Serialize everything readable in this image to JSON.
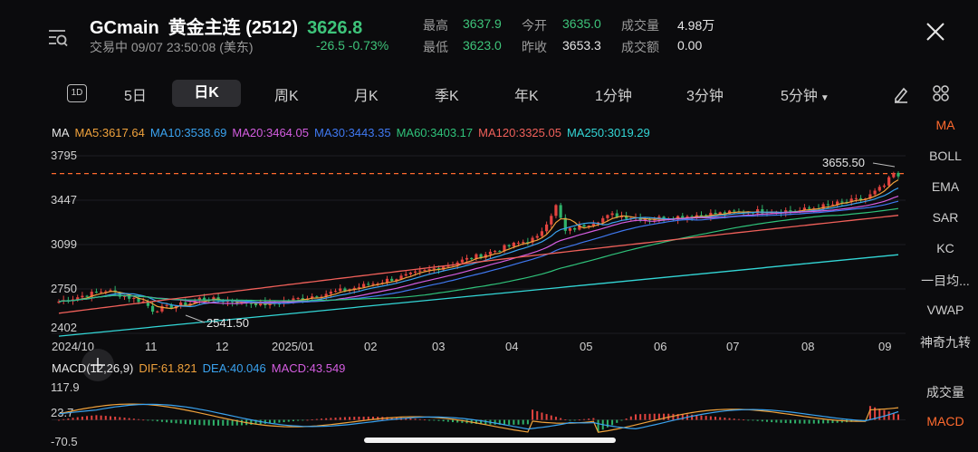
{
  "header": {
    "symbol": "GCmain",
    "name": "黄金主连 (2512)",
    "price": "3626.8",
    "status": "交易中 09/07 23:50:08 (美东)",
    "change": "-26.5 -0.73%",
    "quotes": [
      {
        "label": "最高",
        "value": "3637.9",
        "color": "green"
      },
      {
        "label": "今开",
        "value": "3635.0",
        "color": "green"
      },
      {
        "label": "成交量",
        "value": "4.98万",
        "color": "white"
      },
      {
        "label": "最低",
        "value": "3623.0",
        "color": "green"
      },
      {
        "label": "昨收",
        "value": "3653.3",
        "color": "white"
      },
      {
        "label": "成交额",
        "value": "0.00",
        "color": "white"
      }
    ]
  },
  "tabs": {
    "icon_label": "1D",
    "items": [
      "5日",
      "日K",
      "周K",
      "月K",
      "季K",
      "年K",
      "1分钟",
      "3分钟",
      "5分钟"
    ],
    "active": "日K"
  },
  "ma_legend": [
    {
      "label": "MA",
      "color": "#e6e6e6"
    },
    {
      "label": "MA5:3617.64",
      "color": "#f0a23c"
    },
    {
      "label": "MA10:3538.69",
      "color": "#3aa3f0"
    },
    {
      "label": "MA20:3464.05",
      "color": "#d45de0"
    },
    {
      "label": "MA30:3443.35",
      "color": "#3f78f0"
    },
    {
      "label": "MA60:3403.17",
      "color": "#2fc27a"
    },
    {
      "label": "MA120:3325.05",
      "color": "#f0605a"
    },
    {
      "label": "MA250:3019.29",
      "color": "#33d6d6"
    }
  ],
  "macd_legend": [
    {
      "label": "MACD(12,26,9)",
      "color": "#e6e6e6"
    },
    {
      "label": "DIF:61.821",
      "color": "#f0a23c"
    },
    {
      "label": "DEA:40.046",
      "color": "#3aa3f0"
    },
    {
      "label": "MACD:43.549",
      "color": "#d45de0"
    }
  ],
  "indicators_main": [
    "MA",
    "BOLL",
    "EMA",
    "SAR",
    "KC",
    "一目均...",
    "VWAP",
    "神奇九转"
  ],
  "indicators_sub": [
    "成交量",
    "MACD"
  ],
  "colors": {
    "up": "#e2433f",
    "down": "#2fb26a",
    "accent": "#ff6a2e"
  },
  "chart_data": {
    "type": "candlestick",
    "y_ticks": [
      "3795",
      "3447",
      "3099",
      "2750",
      "2402"
    ],
    "x_labels": [
      "2024/10",
      "11",
      "12",
      "2025/01",
      "02",
      "03",
      "04",
      "05",
      "06",
      "07",
      "08",
      "09"
    ],
    "ylim": [
      2402,
      3795
    ],
    "reference_line": 3655.5,
    "annotations": [
      {
        "text": "3655.50",
        "value": 3655.5
      },
      {
        "text": "2541.50",
        "value": 2541.5
      }
    ],
    "close_path": [
      [
        0,
        2652
      ],
      [
        10,
        2740
      ],
      [
        18,
        2650
      ],
      [
        20,
        2585
      ],
      [
        28,
        2640
      ],
      [
        30,
        2675
      ],
      [
        38,
        2650
      ],
      [
        45,
        2630
      ],
      [
        52,
        2680
      ],
      [
        62,
        2750
      ],
      [
        70,
        2820
      ],
      [
        75,
        2860
      ],
      [
        80,
        2910
      ],
      [
        90,
        3015
      ],
      [
        98,
        3110
      ],
      [
        102,
        3150
      ],
      [
        106,
        3400
      ],
      [
        108,
        3200
      ],
      [
        118,
        3330
      ],
      [
        126,
        3300
      ],
      [
        136,
        3330
      ],
      [
        148,
        3360
      ],
      [
        158,
        3365
      ],
      [
        166,
        3420
      ],
      [
        172,
        3460
      ],
      [
        176,
        3560
      ],
      [
        178,
        3655
      ],
      [
        179,
        3620
      ]
    ],
    "macd": {
      "ylim": [
        -70.5,
        117.9
      ],
      "y_ticks": [
        "117.9",
        "23.7",
        "-70.5"
      ]
    },
    "series": [
      {
        "name": "MA250",
        "value": 3019.29
      },
      {
        "name": "MA120",
        "value": 3325.05
      },
      {
        "name": "MA60",
        "value": 3403.17
      },
      {
        "name": "MA30",
        "value": 3443.35
      },
      {
        "name": "MA20",
        "value": 3464.05
      },
      {
        "name": "MA10",
        "value": 3538.69
      },
      {
        "name": "MA5",
        "value": 3617.64
      }
    ]
  }
}
